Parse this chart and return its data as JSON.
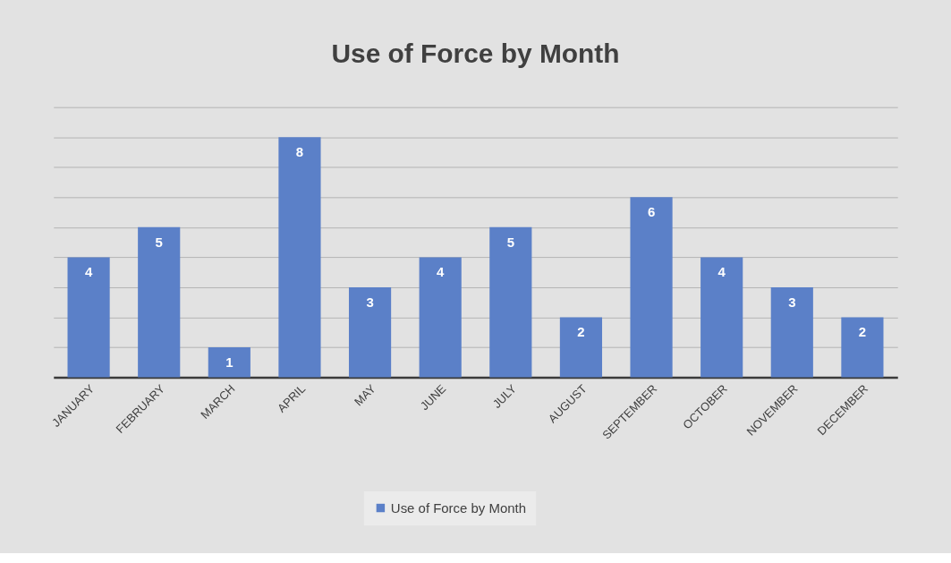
{
  "chart_data": {
    "type": "bar",
    "title": "Use of Force by Month",
    "categories": [
      "JANUARY",
      "FEBRUARY",
      "MARCH",
      "APRIL",
      "MAY",
      "JUNE",
      "JULY",
      "AUGUST",
      "SEPTEMBER",
      "OCTOBER",
      "NOVEMBER",
      "DECEMBER"
    ],
    "series": [
      {
        "name": "Use of Force by Month",
        "color": "#5b80c8",
        "values": [
          4,
          5,
          1,
          8,
          3,
          4,
          5,
          2,
          6,
          4,
          3,
          2
        ]
      }
    ],
    "ylim": [
      0,
      9
    ],
    "yticks": [
      {
        "value": 1,
        "label": null
      },
      {
        "value": 2,
        "label": null
      },
      {
        "value": 3,
        "label": null
      },
      {
        "value": 4,
        "label": null
      },
      {
        "value": 5,
        "label": null
      },
      {
        "value": 6,
        "label": null
      },
      {
        "value": 7,
        "label": null
      },
      {
        "value": 8,
        "label": null
      },
      {
        "value": 9,
        "label": null
      }
    ],
    "tick_labels": "x",
    "grid": "y",
    "legend": "bottom",
    "data_labels": true
  }
}
